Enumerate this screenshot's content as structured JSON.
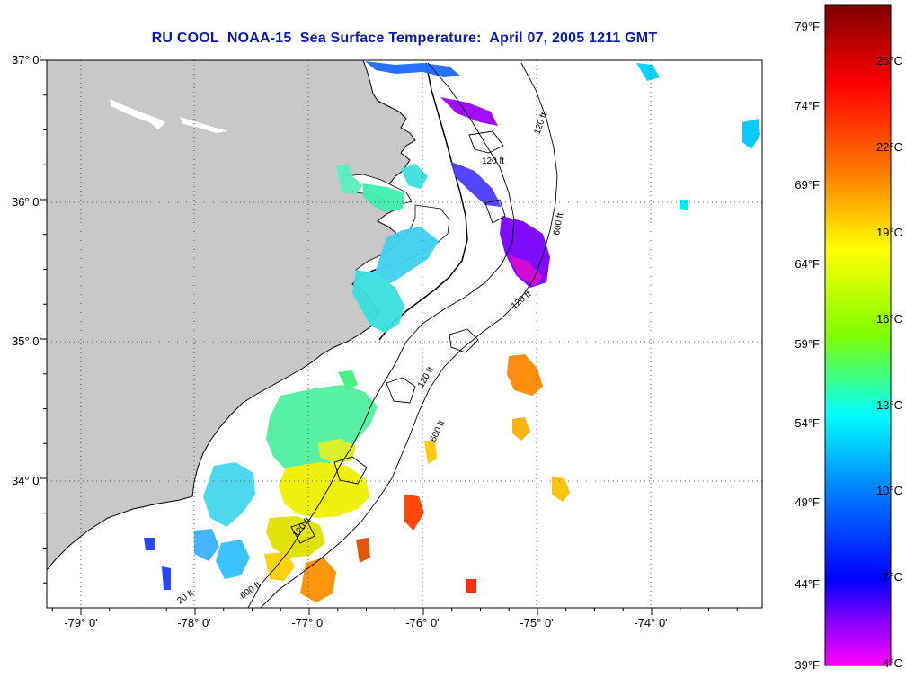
{
  "title": "RU COOL  NOAA-15  Sea Surface Temperature:  April 07, 2005 1211 GMT",
  "map": {
    "lon_labels": [
      {
        "lon": -79,
        "text": "-79° 0'"
      },
      {
        "lon": -78,
        "text": "-78° 0'"
      },
      {
        "lon": -77,
        "text": "-77° 0'"
      },
      {
        "lon": -76,
        "text": "-76° 0'"
      },
      {
        "lon": -75,
        "text": "-75° 0'"
      },
      {
        "lon": -74,
        "text": "-74° 0'"
      }
    ],
    "lat_labels": [
      {
        "lat": 37,
        "text": "37° 0'"
      },
      {
        "lat": 36,
        "text": "36° 0'"
      },
      {
        "lat": 35,
        "text": "35° 0'"
      },
      {
        "lat": 34,
        "text": "34° 0'"
      }
    ],
    "contour_labels": [
      "120 ft",
      "120 ft",
      "600 ft",
      "120 ft",
      "120 ft",
      "600 ft",
      "120 ft",
      "20 ft",
      "600 ft"
    ],
    "land_color": "#c8c8c8",
    "ocean_color": "#ffffff"
  },
  "colorbar": {
    "fahrenheit_labels": [
      "79°F",
      "74°F",
      "69°F",
      "64°F",
      "59°F",
      "54°F",
      "49°F",
      "44°F",
      "39°F"
    ],
    "celsius_labels": [
      "25°C",
      "22°C",
      "19°C",
      "16°C",
      "13°C",
      "10°C",
      "7°C",
      "4°C"
    ],
    "colors_top_to_bottom": [
      "#8b0000",
      "#ff0000",
      "#ff8000",
      "#ffff00",
      "#80ff00",
      "#00ffff",
      "#0080ff",
      "#0000ff",
      "#8000ff",
      "#ff00ff"
    ]
  }
}
